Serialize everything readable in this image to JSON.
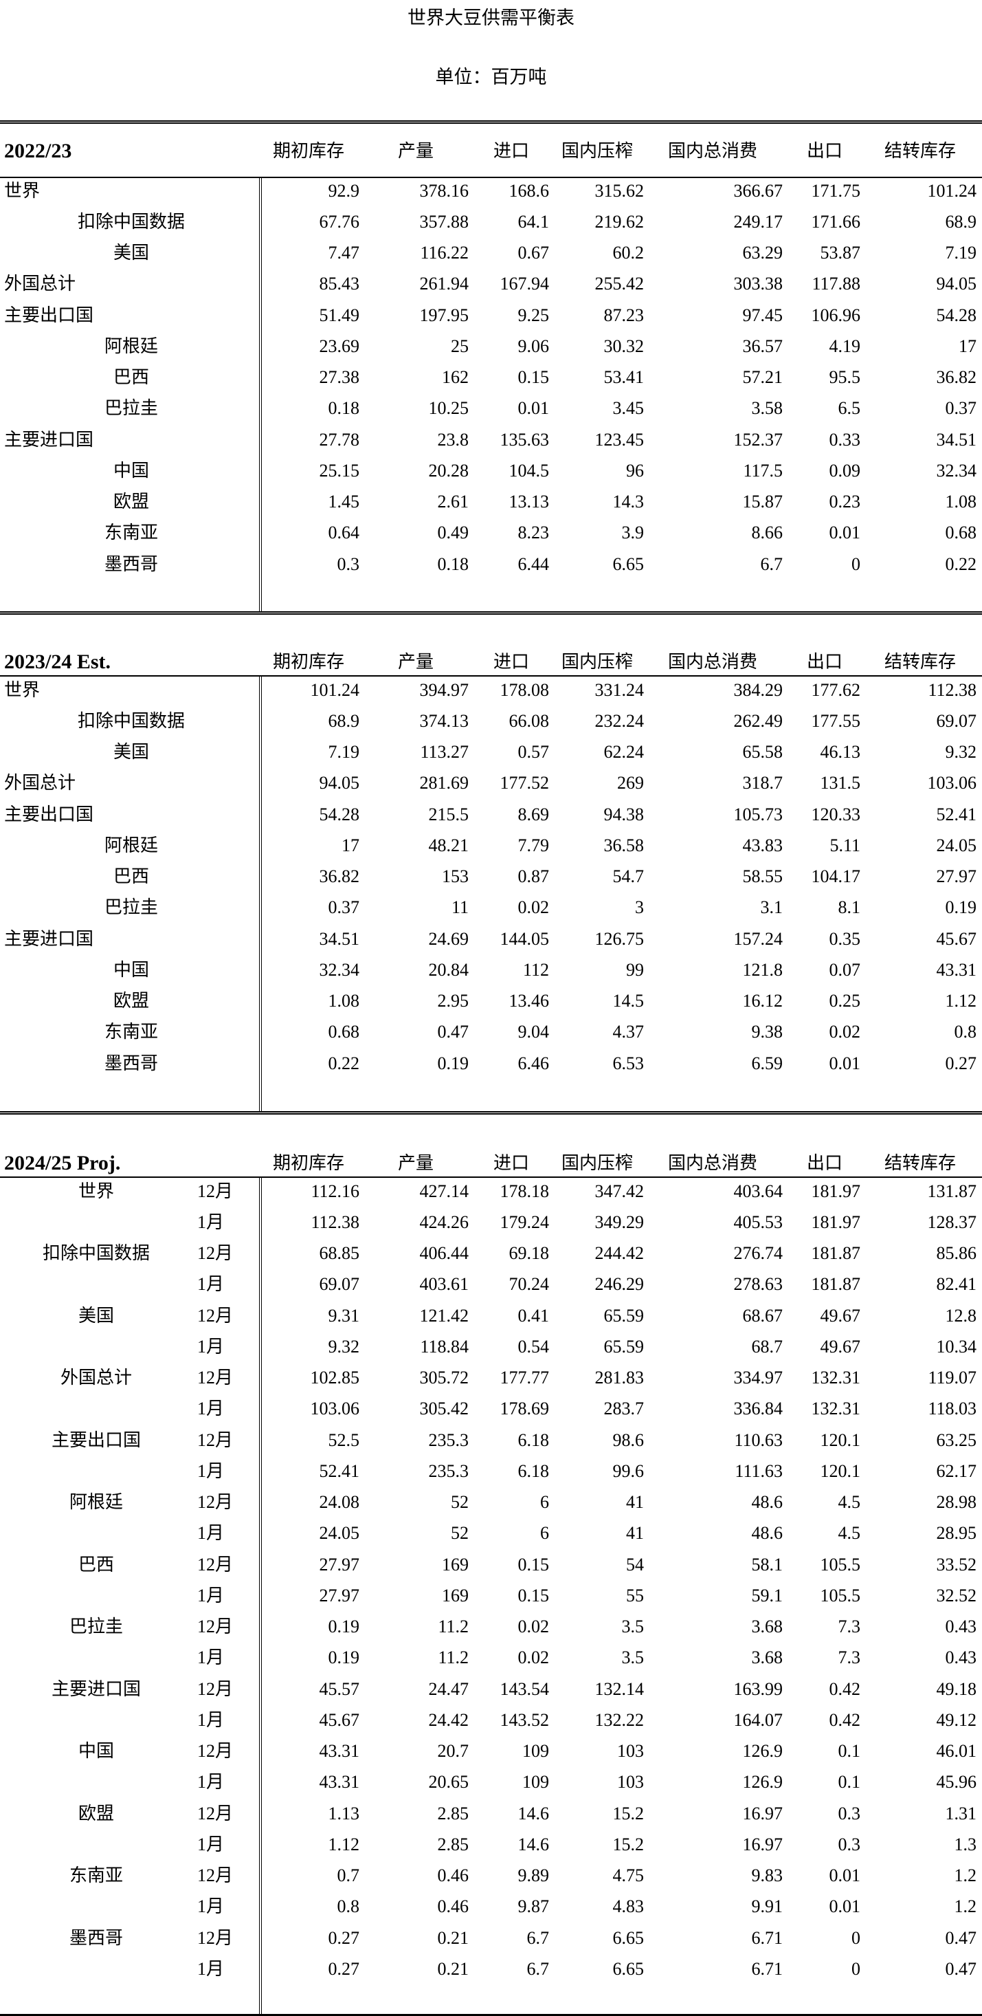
{
  "title": "世界大豆供需平衡表",
  "unit": "单位：百万吨",
  "columns": [
    "期初库存",
    "产量",
    "进口",
    "国内压榨",
    "国内总消费",
    "出口",
    "结转库存"
  ],
  "sections": [
    {
      "title": "2022/23",
      "rows": [
        {
          "label": "世界",
          "level": 0,
          "values": [
            "92.9",
            "378.16",
            "168.6",
            "315.62",
            "366.67",
            "171.75",
            "101.24"
          ]
        },
        {
          "label": "扣除中国数据",
          "level": 1,
          "values": [
            "67.76",
            "357.88",
            "64.1",
            "219.62",
            "249.17",
            "171.66",
            "68.9"
          ]
        },
        {
          "label": "美国",
          "level": 1,
          "values": [
            "7.47",
            "116.22",
            "0.67",
            "60.2",
            "63.29",
            "53.87",
            "7.19"
          ]
        },
        {
          "label": "外国总计",
          "level": 0,
          "values": [
            "85.43",
            "261.94",
            "167.94",
            "255.42",
            "303.38",
            "117.88",
            "94.05"
          ]
        },
        {
          "label": "主要出口国",
          "level": 0,
          "values": [
            "51.49",
            "197.95",
            "9.25",
            "87.23",
            "97.45",
            "106.96",
            "54.28"
          ]
        },
        {
          "label": "阿根廷",
          "level": 1,
          "values": [
            "23.69",
            "25",
            "9.06",
            "30.32",
            "36.57",
            "4.19",
            "17"
          ]
        },
        {
          "label": "巴西",
          "level": 1,
          "values": [
            "27.38",
            "162",
            "0.15",
            "53.41",
            "57.21",
            "95.5",
            "36.82"
          ]
        },
        {
          "label": "巴拉圭",
          "level": 1,
          "values": [
            "0.18",
            "10.25",
            "0.01",
            "3.45",
            "3.58",
            "6.5",
            "0.37"
          ]
        },
        {
          "label": "主要进口国",
          "level": 0,
          "values": [
            "27.78",
            "23.8",
            "135.63",
            "123.45",
            "152.37",
            "0.33",
            "34.51"
          ]
        },
        {
          "label": "中国",
          "level": 1,
          "values": [
            "25.15",
            "20.28",
            "104.5",
            "96",
            "117.5",
            "0.09",
            "32.34"
          ]
        },
        {
          "label": "欧盟",
          "level": 1,
          "values": [
            "1.45",
            "2.61",
            "13.13",
            "14.3",
            "15.87",
            "0.23",
            "1.08"
          ]
        },
        {
          "label": "东南亚",
          "level": 1,
          "values": [
            "0.64",
            "0.49",
            "8.23",
            "3.9",
            "8.66",
            "0.01",
            "0.68"
          ]
        },
        {
          "label": "墨西哥",
          "level": 1,
          "values": [
            "0.3",
            "0.18",
            "6.44",
            "6.65",
            "6.7",
            "0",
            "0.22"
          ]
        }
      ]
    },
    {
      "title": "2023/24 Est.",
      "rows": [
        {
          "label": "世界",
          "level": 0,
          "values": [
            "101.24",
            "394.97",
            "178.08",
            "331.24",
            "384.29",
            "177.62",
            "112.38"
          ]
        },
        {
          "label": "扣除中国数据",
          "level": 1,
          "values": [
            "68.9",
            "374.13",
            "66.08",
            "232.24",
            "262.49",
            "177.55",
            "69.07"
          ]
        },
        {
          "label": "美国",
          "level": 1,
          "values": [
            "7.19",
            "113.27",
            "0.57",
            "62.24",
            "65.58",
            "46.13",
            "9.32"
          ]
        },
        {
          "label": "外国总计",
          "level": 0,
          "values": [
            "94.05",
            "281.69",
            "177.52",
            "269",
            "318.7",
            "131.5",
            "103.06"
          ]
        },
        {
          "label": "主要出口国",
          "level": 0,
          "values": [
            "54.28",
            "215.5",
            "8.69",
            "94.38",
            "105.73",
            "120.33",
            "52.41"
          ]
        },
        {
          "label": "阿根廷",
          "level": 1,
          "values": [
            "17",
            "48.21",
            "7.79",
            "36.58",
            "43.83",
            "5.11",
            "24.05"
          ]
        },
        {
          "label": "巴西",
          "level": 1,
          "values": [
            "36.82",
            "153",
            "0.87",
            "54.7",
            "58.55",
            "104.17",
            "27.97"
          ]
        },
        {
          "label": "巴拉圭",
          "level": 1,
          "values": [
            "0.37",
            "11",
            "0.02",
            "3",
            "3.1",
            "8.1",
            "0.19"
          ]
        },
        {
          "label": "主要进口国",
          "level": 0,
          "values": [
            "34.51",
            "24.69",
            "144.05",
            "126.75",
            "157.24",
            "0.35",
            "45.67"
          ]
        },
        {
          "label": "中国",
          "level": 1,
          "values": [
            "32.34",
            "20.84",
            "112",
            "99",
            "121.8",
            "0.07",
            "43.31"
          ]
        },
        {
          "label": "欧盟",
          "level": 1,
          "values": [
            "1.08",
            "2.95",
            "13.46",
            "14.5",
            "16.12",
            "0.25",
            "1.12"
          ]
        },
        {
          "label": "东南亚",
          "level": 1,
          "values": [
            "0.68",
            "0.47",
            "9.04",
            "4.37",
            "9.38",
            "0.02",
            "0.8"
          ]
        },
        {
          "label": "墨西哥",
          "level": 1,
          "values": [
            "0.22",
            "0.19",
            "6.46",
            "6.53",
            "6.59",
            "0.01",
            "0.27"
          ]
        }
      ]
    },
    {
      "title": "2024/25 Proj.",
      "groups": [
        {
          "label": "世界",
          "months": [
            {
              "month": "12月",
              "values": [
                "112.16",
                "427.14",
                "178.18",
                "347.42",
                "403.64",
                "181.97",
                "131.87"
              ]
            },
            {
              "month": "1月",
              "values": [
                "112.38",
                "424.26",
                "179.24",
                "349.29",
                "405.53",
                "181.97",
                "128.37"
              ]
            }
          ]
        },
        {
          "label": "扣除中国数据",
          "months": [
            {
              "month": "12月",
              "values": [
                "68.85",
                "406.44",
                "69.18",
                "244.42",
                "276.74",
                "181.87",
                "85.86"
              ]
            },
            {
              "month": "1月",
              "values": [
                "69.07",
                "403.61",
                "70.24",
                "246.29",
                "278.63",
                "181.87",
                "82.41"
              ]
            }
          ]
        },
        {
          "label": "美国",
          "months": [
            {
              "month": "12月",
              "values": [
                "9.31",
                "121.42",
                "0.41",
                "65.59",
                "68.67",
                "49.67",
                "12.8"
              ]
            },
            {
              "month": "1月",
              "values": [
                "9.32",
                "118.84",
                "0.54",
                "65.59",
                "68.7",
                "49.67",
                "10.34"
              ]
            }
          ]
        },
        {
          "label": "外国总计",
          "months": [
            {
              "month": "12月",
              "values": [
                "102.85",
                "305.72",
                "177.77",
                "281.83",
                "334.97",
                "132.31",
                "119.07"
              ]
            },
            {
              "month": "1月",
              "values": [
                "103.06",
                "305.42",
                "178.69",
                "283.7",
                "336.84",
                "132.31",
                "118.03"
              ]
            }
          ]
        },
        {
          "label": "主要出口国",
          "months": [
            {
              "month": "12月",
              "values": [
                "52.5",
                "235.3",
                "6.18",
                "98.6",
                "110.63",
                "120.1",
                "63.25"
              ]
            },
            {
              "month": "1月",
              "values": [
                "52.41",
                "235.3",
                "6.18",
                "99.6",
                "111.63",
                "120.1",
                "62.17"
              ]
            }
          ]
        },
        {
          "label": "阿根廷",
          "months": [
            {
              "month": "12月",
              "values": [
                "24.08",
                "52",
                "6",
                "41",
                "48.6",
                "4.5",
                "28.98"
              ]
            },
            {
              "month": "1月",
              "values": [
                "24.05",
                "52",
                "6",
                "41",
                "48.6",
                "4.5",
                "28.95"
              ]
            }
          ]
        },
        {
          "label": "巴西",
          "months": [
            {
              "month": "12月",
              "values": [
                "27.97",
                "169",
                "0.15",
                "54",
                "58.1",
                "105.5",
                "33.52"
              ]
            },
            {
              "month": "1月",
              "values": [
                "27.97",
                "169",
                "0.15",
                "55",
                "59.1",
                "105.5",
                "32.52"
              ]
            }
          ]
        },
        {
          "label": "巴拉圭",
          "months": [
            {
              "month": "12月",
              "values": [
                "0.19",
                "11.2",
                "0.02",
                "3.5",
                "3.68",
                "7.3",
                "0.43"
              ]
            },
            {
              "month": "1月",
              "values": [
                "0.19",
                "11.2",
                "0.02",
                "3.5",
                "3.68",
                "7.3",
                "0.43"
              ]
            }
          ]
        },
        {
          "label": "主要进口国",
          "months": [
            {
              "month": "12月",
              "values": [
                "45.57",
                "24.47",
                "143.54",
                "132.14",
                "163.99",
                "0.42",
                "49.18"
              ]
            },
            {
              "month": "1月",
              "values": [
                "45.67",
                "24.42",
                "143.52",
                "132.22",
                "164.07",
                "0.42",
                "49.12"
              ]
            }
          ]
        },
        {
          "label": "中国",
          "months": [
            {
              "month": "12月",
              "values": [
                "43.31",
                "20.7",
                "109",
                "103",
                "126.9",
                "0.1",
                "46.01"
              ]
            },
            {
              "month": "1月",
              "values": [
                "43.31",
                "20.65",
                "109",
                "103",
                "126.9",
                "0.1",
                "45.96"
              ]
            }
          ]
        },
        {
          "label": "欧盟",
          "months": [
            {
              "month": "12月",
              "values": [
                "1.13",
                "2.85",
                "14.6",
                "15.2",
                "16.97",
                "0.3",
                "1.31"
              ]
            },
            {
              "month": "1月",
              "values": [
                "1.12",
                "2.85",
                "14.6",
                "15.2",
                "16.97",
                "0.3",
                "1.3"
              ]
            }
          ]
        },
        {
          "label": "东南亚",
          "months": [
            {
              "month": "12月",
              "values": [
                "0.7",
                "0.46",
                "9.89",
                "4.75",
                "9.83",
                "0.01",
                "1.2"
              ]
            },
            {
              "month": "1月",
              "values": [
                "0.8",
                "0.46",
                "9.87",
                "4.83",
                "9.91",
                "0.01",
                "1.2"
              ]
            }
          ]
        },
        {
          "label": "墨西哥",
          "months": [
            {
              "month": "12月",
              "values": [
                "0.27",
                "0.21",
                "6.7",
                "6.65",
                "6.71",
                "0",
                "0.47"
              ]
            },
            {
              "month": "1月",
              "values": [
                "0.27",
                "0.21",
                "6.7",
                "6.65",
                "6.71",
                "0",
                "0.47"
              ]
            }
          ]
        }
      ]
    }
  ]
}
